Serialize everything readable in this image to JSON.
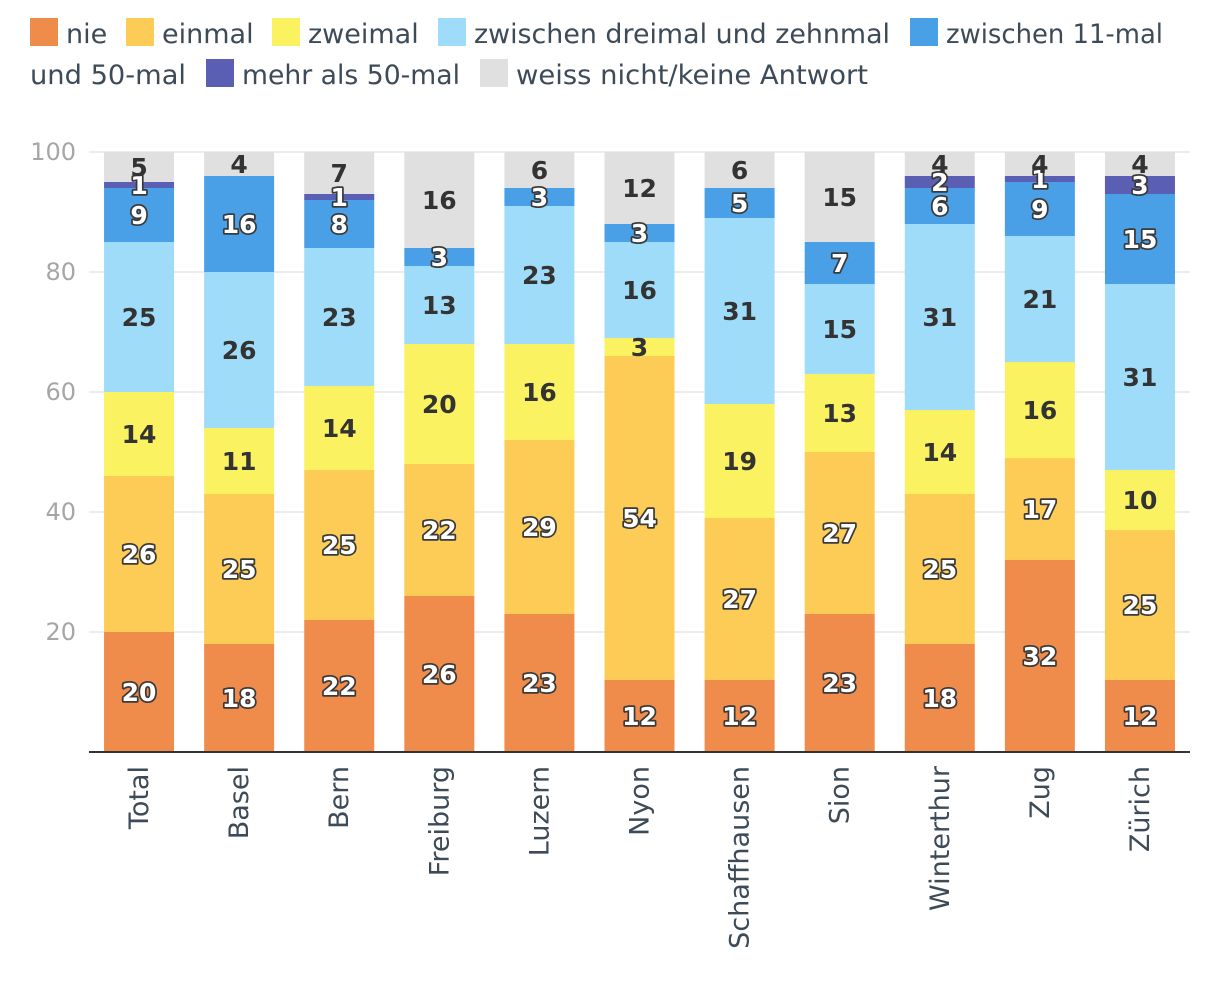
{
  "chart_data": {
    "type": "bar",
    "stacked": true,
    "title": "",
    "xlabel": "",
    "ylabel": "",
    "ylim": [
      0,
      100
    ],
    "yticks": [
      20,
      40,
      60,
      80,
      100
    ],
    "grid": true,
    "legend_position": "top",
    "categories": [
      "Total",
      "Basel",
      "Bern",
      "Freiburg",
      "Luzern",
      "Nyon",
      "Schaffhausen",
      "Sion",
      "Winterthur",
      "Zug",
      "Zürich"
    ],
    "series": [
      {
        "name": "nie",
        "color": "#ef8c4c",
        "values": [
          20,
          18,
          22,
          26,
          23,
          12,
          12,
          23,
          18,
          32,
          12
        ]
      },
      {
        "name": "einmal",
        "color": "#fdcc56",
        "values": [
          26,
          25,
          25,
          22,
          29,
          54,
          27,
          27,
          25,
          17,
          25
        ]
      },
      {
        "name": "zweimal",
        "color": "#fbf262",
        "values": [
          14,
          11,
          14,
          20,
          16,
          3,
          19,
          13,
          14,
          16,
          10
        ]
      },
      {
        "name": "zwischen dreimal und zehnmal",
        "color": "#9fdcf9",
        "values": [
          25,
          26,
          23,
          13,
          23,
          16,
          31,
          15,
          31,
          21,
          31
        ]
      },
      {
        "name": "zwischen 11-mal und 50-mal",
        "color": "#4aa0e6",
        "values": [
          9,
          16,
          8,
          3,
          3,
          3,
          5,
          7,
          6,
          9,
          15
        ]
      },
      {
        "name": "mehr als 50-mal",
        "color": "#5a5fb3",
        "values": [
          1,
          0,
          1,
          0,
          0,
          0,
          0,
          0,
          2,
          1,
          3
        ]
      },
      {
        "name": "weiss nicht/keine Antwort",
        "color": "#e0e0e0",
        "values": [
          5,
          4,
          7,
          16,
          6,
          12,
          6,
          15,
          4,
          4,
          4
        ]
      }
    ]
  },
  "legend": {
    "line1": [
      "nie",
      "einmal",
      "zweimal",
      "zwischen dreimal und zehnmal",
      "zwischen 11-mal"
    ],
    "line2": [
      "und 50-mal",
      "mehr als 50-mal",
      "weiss nicht/keine Antwort"
    ]
  }
}
